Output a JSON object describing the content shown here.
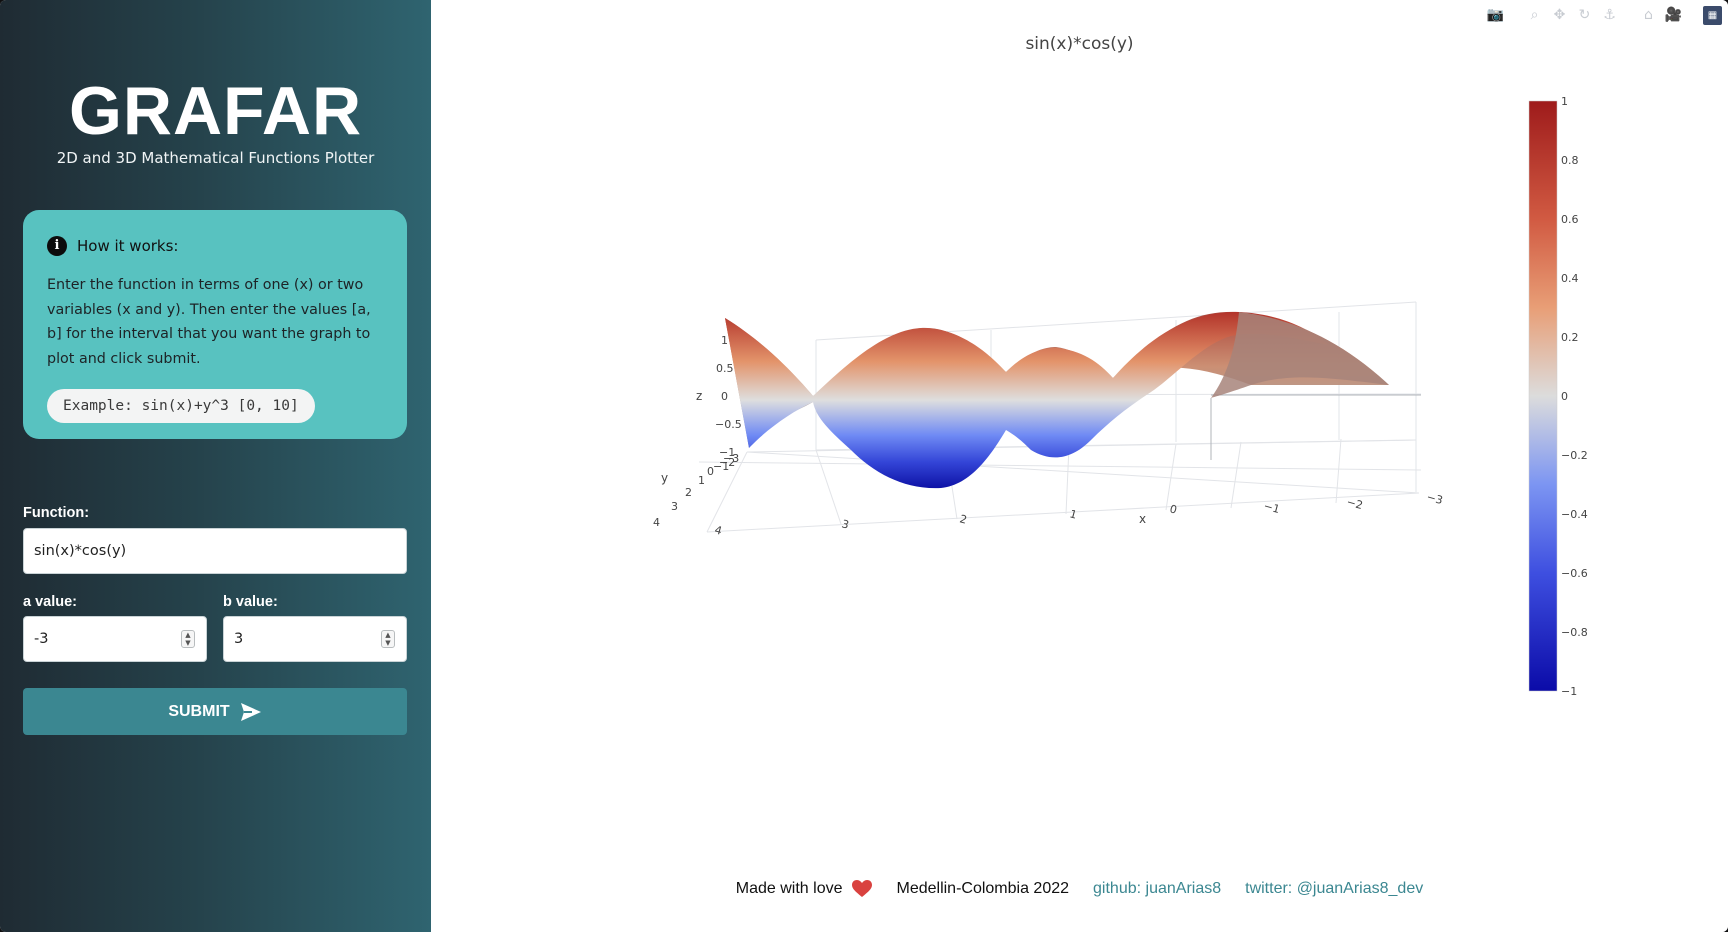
{
  "app": {
    "title": "GRAFAR",
    "subtitle": "2D and 3D Mathematical Functions Plotter"
  },
  "info": {
    "heading": "How it works:",
    "icon": "info-icon",
    "body": "Enter the function in terms of one (x) or two variables (x and y). Then enter the values [a, b] for the interval that you want the graph to plot and click submit.",
    "example": "Example: sin(x)+y^3 [0, 10]"
  },
  "form": {
    "function_label": "Function:",
    "function_value": "sin(x)*cos(y)",
    "a_label": "a value:",
    "a_value": "-3",
    "b_label": "b value:",
    "b_value": "3",
    "submit_label": "SUBMIT",
    "submit_icon": "send-icon"
  },
  "toolbar": {
    "icons": [
      "camera-icon",
      "zoom-icon",
      "pan-icon",
      "orbit-rotation-icon",
      "turntable-rotation-icon",
      "reset-camera-icon",
      "default-view-icon",
      "plotly-logo-icon"
    ]
  },
  "chart_data": {
    "type": "surface",
    "title": "sin(x)*cos(y)",
    "function": "sin(x)*cos(y)",
    "x_range": [
      -3,
      3
    ],
    "y_range": [
      -3,
      3
    ],
    "z_range": [
      -1,
      1
    ],
    "axes": {
      "x": {
        "label": "x",
        "ticks": [
          "4",
          "3",
          "2",
          "1",
          "0",
          "−1",
          "−2",
          "−3"
        ]
      },
      "y": {
        "label": "y",
        "ticks": [
          "4",
          "3",
          "2",
          "1",
          "0",
          "−1",
          "−2",
          "−3"
        ]
      },
      "z": {
        "label": "z",
        "ticks": [
          "1",
          "0.5",
          "0",
          "−0.5",
          "−1"
        ]
      }
    },
    "colorscale": "RdBu (reversed, red=high, blue=low)",
    "colorbar": {
      "ticks": [
        "1",
        "0.8",
        "0.6",
        "0.4",
        "0.2",
        "0",
        "−0.2",
        "−0.4",
        "−0.6",
        "−0.8",
        "−1"
      ],
      "colors": {
        "high": "#9e1b1b",
        "mid": "#dcdcdc",
        "low": "#0b0ba8"
      }
    }
  },
  "footer": {
    "made_with": "Made with love",
    "heart_icon": "heart-icon",
    "place": "Medellin-Colombia 2022",
    "github": "github: juanArias8",
    "twitter": "twitter: @juanArias8_dev"
  }
}
